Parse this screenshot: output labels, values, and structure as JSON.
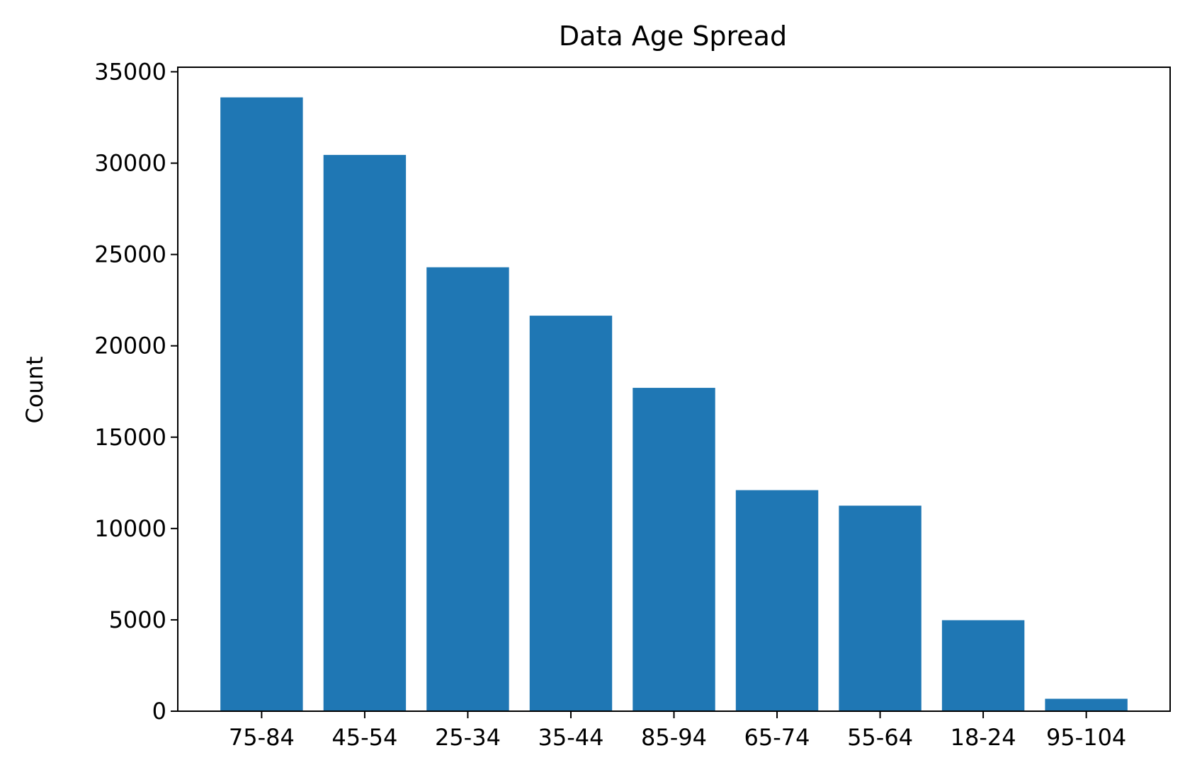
{
  "chart_data": {
    "type": "bar",
    "title": "Data Age Spread",
    "xlabel": "",
    "ylabel": "Count",
    "categories": [
      "75-84",
      "45-54",
      "25-34",
      "35-44",
      "85-94",
      "65-74",
      "55-64",
      "18-24",
      "95-104"
    ],
    "values": [
      33600,
      30450,
      24300,
      21650,
      17700,
      12100,
      11250,
      4980,
      680
    ],
    "ylim": [
      0,
      35250
    ],
    "yticks": [
      0,
      5000,
      10000,
      15000,
      20000,
      25000,
      30000,
      35000
    ],
    "grid": false,
    "bar_color": "#1f77b4"
  }
}
